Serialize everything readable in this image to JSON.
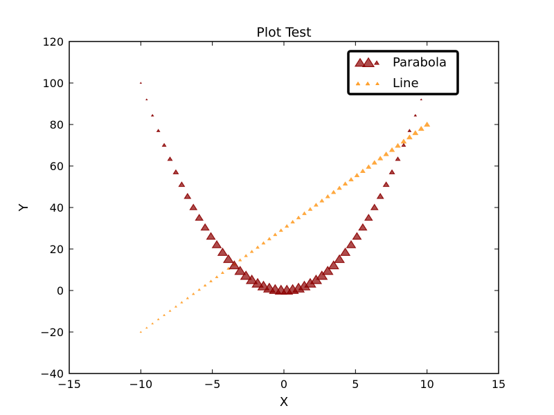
{
  "chart_data": {
    "type": "scatter",
    "title": "Plot Test",
    "xlabel": "X",
    "ylabel": "Y",
    "xlim": [
      -15,
      15
    ],
    "ylim": [
      -40,
      120
    ],
    "xticks": [
      -15,
      -10,
      -5,
      0,
      5,
      10,
      15
    ],
    "yticks": [
      -40,
      -20,
      0,
      20,
      40,
      60,
      80,
      100,
      120
    ],
    "xtick_labels": [
      "−15",
      "−10",
      "−5",
      "0",
      "5",
      "10",
      "15"
    ],
    "ytick_labels": [
      "−40",
      "−20",
      "0",
      "20",
      "40",
      "60",
      "80",
      "100",
      "120"
    ],
    "grid": false,
    "legend_position": "top-right",
    "marker": "triangle",
    "x_range": {
      "start": -10,
      "end": 10,
      "count": 50
    },
    "series": [
      {
        "name": "Parabola",
        "function": "y = x^2",
        "color": "#8b0000",
        "marker_size": "decreasing with |y|"
      },
      {
        "name": "Line",
        "function": "y = 5x + 30",
        "color": "#ff8c00",
        "marker_size": "constant"
      }
    ]
  }
}
